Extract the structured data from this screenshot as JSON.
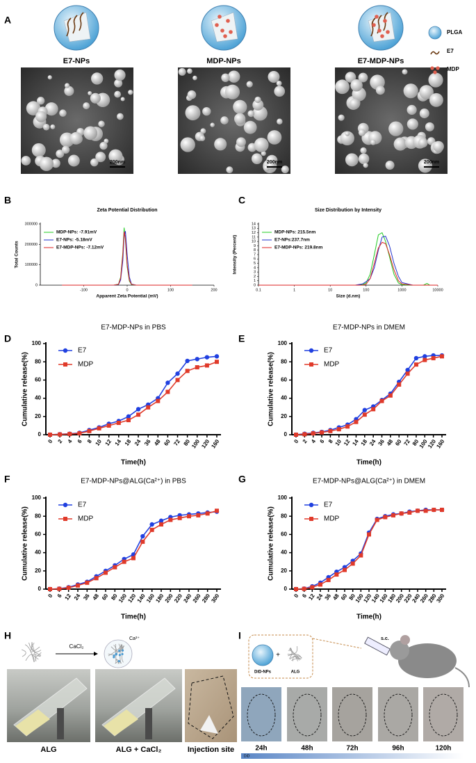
{
  "chart_data": [
    {
      "type": "line",
      "title": "Zeta Potential Distribution",
      "xlabel": "Apparent Zeta Potential (mV)",
      "ylabel": "Total Counts",
      "x": [
        -150,
        -60,
        -30,
        -20,
        -15,
        -10,
        -7,
        -4,
        0,
        5,
        10,
        20,
        40,
        150
      ],
      "xlim": [
        -200,
        200
      ],
      "xticks": [
        -100,
        0,
        100,
        200
      ],
      "ylim": [
        0,
        300000
      ],
      "yticks": [
        0,
        100000,
        200000,
        300000
      ],
      "legend": "upper left",
      "series": [
        {
          "name": "MDP-NPs: -7.91mV",
          "color": "#22cc22",
          "values": [
            0,
            0,
            500,
            5000,
            40000,
            160000,
            282000,
            220000,
            90000,
            20000,
            3000,
            0,
            0,
            0
          ]
        },
        {
          "name": "E7-NPs: -5.18mV",
          "color": "#2233cc",
          "values": [
            0,
            0,
            300,
            3000,
            25000,
            120000,
            240000,
            265000,
            150000,
            40000,
            5000,
            500,
            0,
            0
          ]
        },
        {
          "name": "E7-MDP-NPs: -7.12mV",
          "color": "#dd2222",
          "values": [
            0,
            0,
            400,
            4000,
            35000,
            150000,
            262000,
            230000,
            100000,
            25000,
            4000,
            200,
            0,
            0
          ]
        }
      ]
    },
    {
      "type": "line",
      "title": "Size Distribution by Intensity",
      "xlabel": "Size (d.nm)",
      "ylabel": "Intensity (Percent)",
      "x": [
        0.1,
        50,
        80,
        100,
        130,
        170,
        220,
        280,
        350,
        450,
        600,
        800,
        1000,
        2000,
        4000,
        5000,
        6000,
        10000
      ],
      "xlog": true,
      "xlim": [
        0.1,
        10000
      ],
      "xticks": [
        0.1,
        1,
        10,
        100,
        1000,
        10000
      ],
      "ylim": [
        0,
        14
      ],
      "yticks": [
        0,
        1,
        2,
        3,
        4,
        5,
        6,
        7,
        8,
        9,
        10,
        11,
        12,
        13,
        14
      ],
      "legend": "upper left",
      "series": [
        {
          "name": "MDP-NPs: 215.5nm",
          "color": "#22cc22",
          "values": [
            0,
            0,
            0.1,
            0.5,
            2.5,
            7,
            11.5,
            12,
            10,
            6.5,
            2.5,
            0.5,
            0.1,
            0,
            0,
            0.4,
            0,
            0
          ]
        },
        {
          "name": "E7-NPs:237.7nm",
          "color": "#2233cc",
          "values": [
            0,
            0,
            0.3,
            0.8,
            1.5,
            4,
            8,
            11,
            11.2,
            9,
            5,
            2,
            0.6,
            0,
            0,
            0,
            0,
            0
          ]
        },
        {
          "name": "E7-MDP-NPs: 219.8nm",
          "color": "#dd2222",
          "values": [
            0,
            0,
            0,
            0.2,
            1.5,
            5,
            8.5,
            9.8,
            9.5,
            7,
            3.5,
            1,
            0.3,
            0,
            0,
            0,
            0,
            0
          ]
        }
      ]
    },
    {
      "type": "line",
      "title": "E7-MDP-NPs in PBS",
      "xlabel": "Time(h)",
      "ylabel": "Cumulative  release(%)",
      "categories": [
        "0",
        "2",
        "4",
        "6",
        "8",
        "10",
        "12",
        "14",
        "18",
        "24",
        "36",
        "48",
        "60",
        "72",
        "80",
        "100",
        "120",
        "160"
      ],
      "ylim": [
        0,
        100
      ],
      "yticks": [
        0,
        20,
        40,
        60,
        80,
        100
      ],
      "legend": "upper left",
      "series": [
        {
          "name": "E7",
          "color": "#2040e0",
          "marker": "circle",
          "values": [
            0,
            0.5,
            1,
            2,
            5,
            8,
            12,
            15,
            20,
            28,
            33,
            40,
            57,
            67,
            81,
            83,
            85,
            86
          ]
        },
        {
          "name": "MDP",
          "color": "#e03a2a",
          "marker": "square",
          "values": [
            0,
            0.3,
            0.8,
            1.5,
            4,
            7,
            10,
            13,
            16,
            22,
            30,
            37,
            47,
            60,
            70,
            74,
            76,
            80
          ]
        }
      ]
    },
    {
      "type": "line",
      "title": "E7-MDP-NPs in DMEM",
      "xlabel": "Time(h)",
      "ylabel": "Cumulative  release(%)",
      "categories": [
        "0",
        "2",
        "4",
        "6",
        "8",
        "10",
        "12",
        "14",
        "18",
        "24",
        "36",
        "48",
        "60",
        "72",
        "80",
        "100",
        "120",
        "160"
      ],
      "ylim": [
        0,
        100
      ],
      "yticks": [
        0,
        20,
        40,
        60,
        80,
        100
      ],
      "legend": "upper left",
      "series": [
        {
          "name": "E7",
          "color": "#2040e0",
          "marker": "circle",
          "values": [
            0,
            1,
            2,
            3,
            5,
            8,
            11,
            17,
            27,
            31,
            38,
            45,
            58,
            71,
            84,
            86,
            87,
            87
          ]
        },
        {
          "name": "MDP",
          "color": "#e03a2a",
          "marker": "square",
          "values": [
            0,
            0.5,
            1.5,
            2.5,
            4,
            6,
            9,
            14,
            22,
            28,
            37,
            43,
            55,
            67,
            77,
            82,
            84,
            86
          ]
        }
      ]
    },
    {
      "type": "line",
      "title": "E7-MDP-NPs@ALG(Ca²⁺)  in PBS",
      "xlabel": "Time(h)",
      "ylabel": "Cumulative  release(%)",
      "categories": [
        "0",
        "6",
        "12",
        "24",
        "36",
        "48",
        "60",
        "80",
        "100",
        "120",
        "140",
        "160",
        "180",
        "200",
        "220",
        "240",
        "260",
        "280",
        "300"
      ],
      "ylim": [
        0,
        100
      ],
      "yticks": [
        0,
        20,
        40,
        60,
        80,
        100
      ],
      "legend": "upper left",
      "series": [
        {
          "name": "E7",
          "color": "#2040e0",
          "marker": "circle",
          "values": [
            0,
            0.5,
            2,
            5,
            8,
            14,
            20,
            26,
            33,
            38,
            58,
            71,
            75,
            79,
            81,
            82,
            83,
            84,
            85
          ]
        },
        {
          "name": "MDP",
          "color": "#e03a2a",
          "marker": "square",
          "values": [
            0,
            0.3,
            1.5,
            4,
            7,
            12,
            18,
            24,
            30,
            34,
            52,
            65,
            71,
            76,
            78,
            80,
            81,
            83,
            86
          ]
        }
      ]
    },
    {
      "type": "line",
      "title": "E7-MDP-NPs@ALG(Ca²⁺)  in DMEM",
      "xlabel": "Time(h)",
      "ylabel": "Cumulative  release(%)",
      "categories": [
        "0",
        "6",
        "12",
        "24",
        "36",
        "48",
        "60",
        "80",
        "100",
        "120",
        "140",
        "160",
        "180",
        "200",
        "220",
        "240",
        "260",
        "280",
        "300"
      ],
      "ylim": [
        0,
        100
      ],
      "yticks": [
        0,
        20,
        40,
        60,
        80,
        100
      ],
      "legend": "upper left",
      "series": [
        {
          "name": "E7",
          "color": "#2040e0",
          "marker": "circle",
          "values": [
            0,
            0.5,
            3,
            7,
            13,
            19,
            24,
            31,
            39,
            62,
            77,
            80,
            82,
            83,
            85,
            86,
            87,
            87,
            87
          ]
        },
        {
          "name": "MDP",
          "color": "#e03a2a",
          "marker": "square",
          "values": [
            0,
            0.3,
            2,
            5,
            10,
            16,
            21,
            28,
            37,
            60,
            76,
            79,
            81,
            83,
            84,
            86,
            86,
            87,
            87
          ]
        }
      ]
    }
  ],
  "figure": {
    "panel_labels": [
      "A",
      "B",
      "C",
      "D",
      "E",
      "F",
      "G",
      "H",
      "I"
    ],
    "a": {
      "samples": [
        "E7-NPs",
        "MDP-NPs",
        "E7-MDP-NPs"
      ],
      "scale_bars": [
        "200nm",
        "200nm",
        "200nm"
      ],
      "legend": [
        "PLGA",
        "E7",
        "MDP"
      ]
    },
    "h": {
      "reagent": "CaCl₂",
      "ion": "Ca²⁺",
      "photos": [
        "ALG",
        "ALG + CaCl₂",
        "Injection site"
      ]
    },
    "i": {
      "route": "s.c.",
      "components": [
        "DiD-NPs",
        "ALG"
      ],
      "times": [
        "24h",
        "48h",
        "72h",
        "96h",
        "120h"
      ],
      "dye": "DiD"
    }
  }
}
